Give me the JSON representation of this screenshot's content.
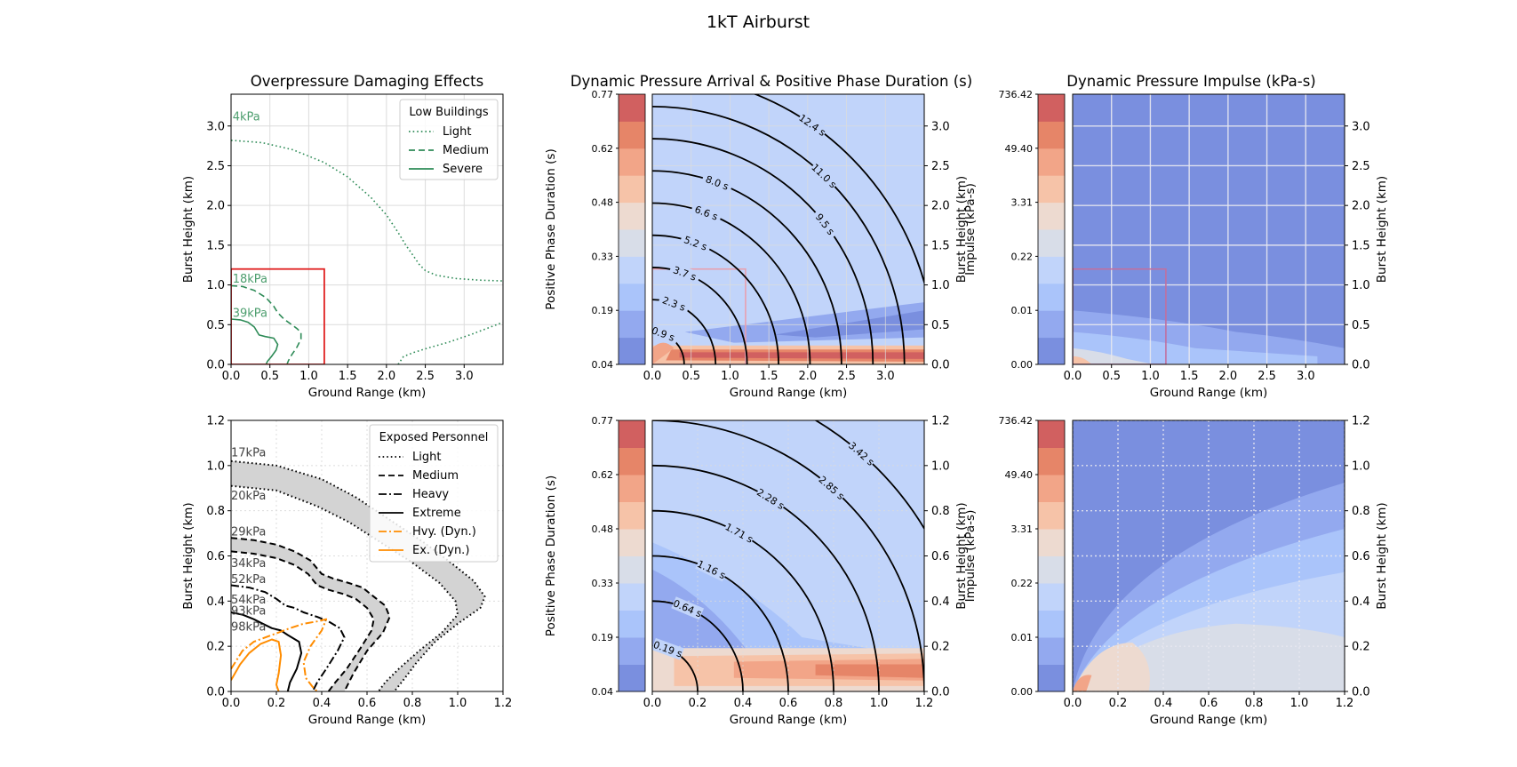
{
  "figure": {
    "suptitle": "1kT Airburst"
  },
  "chart_data": [
    {
      "id": "overpressure-top",
      "type": "line",
      "title": "Overpressure Damaging Effects",
      "xlabel": "Ground Range (km)",
      "ylabel": "Burst Height (km)",
      "xlim": [
        0,
        3.5
      ],
      "ylim": [
        0,
        3.4
      ],
      "xticks": [
        "0.0",
        "0.5",
        "1.0",
        "1.5",
        "2.0",
        "2.5",
        "3.0"
      ],
      "yticks": [
        "0.0",
        "0.5",
        "1.0",
        "1.5",
        "2.0",
        "2.5",
        "3.0"
      ],
      "grid": true,
      "legend": {
        "title": "Low Buildings",
        "position": "top-right",
        "entries": [
          "Light",
          "Medium",
          "Severe"
        ]
      },
      "annotations": [
        "4kPa",
        "18kPa",
        "39kPa"
      ],
      "highlight_box": {
        "x": [
          0,
          1.2
        ],
        "y": [
          0,
          1.2
        ],
        "color": "#e02020"
      },
      "series": [
        {
          "name": "Light",
          "style": "dotted",
          "color": "#2e8b57",
          "x": [
            0,
            0.4,
            0.8,
            1.2,
            1.5,
            1.8,
            2.0,
            2.15,
            2.25,
            2.35,
            2.42,
            2.5,
            2.65,
            2.9,
            3.2,
            3.5
          ],
          "y": [
            2.82,
            2.79,
            2.7,
            2.54,
            2.36,
            2.1,
            1.88,
            1.66,
            1.5,
            1.36,
            1.26,
            1.18,
            1.12,
            1.08,
            1.06,
            1.05
          ]
        },
        {
          "name": "Light",
          "style": "dotted",
          "color": "#2e8b57",
          "x": [
            2.15,
            2.22,
            2.35,
            2.55,
            2.8,
            3.1,
            3.5
          ],
          "y": [
            0.0,
            0.1,
            0.15,
            0.21,
            0.28,
            0.38,
            0.53
          ]
        },
        {
          "name": "Medium",
          "style": "dashed",
          "color": "#2e8b57",
          "x": [
            0,
            0.15,
            0.3,
            0.45,
            0.55,
            0.6,
            0.68,
            0.78,
            0.85,
            0.9,
            0.9,
            0.85,
            0.78,
            0.74,
            0.72
          ],
          "y": [
            0.99,
            0.98,
            0.93,
            0.84,
            0.73,
            0.65,
            0.57,
            0.5,
            0.45,
            0.4,
            0.32,
            0.22,
            0.12,
            0.05,
            0.0
          ]
        },
        {
          "name": "Severe",
          "style": "solid",
          "color": "#2e8b57",
          "x": [
            0,
            0.12,
            0.22,
            0.3,
            0.36,
            0.44,
            0.55,
            0.6,
            0.58,
            0.52,
            0.47,
            0.45
          ],
          "y": [
            0.57,
            0.56,
            0.53,
            0.47,
            0.37,
            0.35,
            0.33,
            0.25,
            0.18,
            0.1,
            0.04,
            0.0
          ]
        }
      ]
    },
    {
      "id": "dynamic-arrival-top",
      "type": "heatmap",
      "title": "Dynamic Pressure Arrival & Positive Phase Duration (s)",
      "xlabel": "Ground Range (km)",
      "ylabel_left": "Positive Phase Duration (s)",
      "ylabel_right": "Burst Height (km)",
      "xlim": [
        0,
        3.5
      ],
      "ylim": [
        0,
        3.4
      ],
      "xticks": [
        "0.0",
        "0.5",
        "1.0",
        "1.5",
        "2.0",
        "2.5",
        "3.0"
      ],
      "yticks_right": [
        "0.0",
        "0.5",
        "1.0",
        "1.5",
        "2.0",
        "2.5",
        "3.0"
      ],
      "colorbar_ticks": [
        "0.04",
        "0.19",
        "0.33",
        "0.48",
        "0.62",
        "0.77"
      ],
      "contour_labels": [
        "0.9 s",
        "2.3 s",
        "3.7 s",
        "5.2 s",
        "6.6 s",
        "8.0 s",
        "9.5 s",
        "11.0 s",
        "12.4 s"
      ],
      "highlight_box": {
        "x": [
          0,
          1.2
        ],
        "y": [
          0,
          1.2
        ],
        "color": "#e8a0b0"
      },
      "grid": true
    },
    {
      "id": "dynamic-impulse-top",
      "type": "heatmap",
      "title": "Dynamic Pressure Impulse (kPa-s)",
      "xlabel": "Ground Range (km)",
      "ylabel_left": "Impulse (kPa-s)",
      "ylabel_right": "Burst Height (km)",
      "xlim": [
        0,
        3.5
      ],
      "ylim": [
        0,
        3.4
      ],
      "xticks": [
        "0.0",
        "0.5",
        "1.0",
        "1.5",
        "2.0",
        "2.5",
        "3.0"
      ],
      "yticks_right": [
        "0.0",
        "0.5",
        "1.0",
        "1.5",
        "2.0",
        "2.5",
        "3.0"
      ],
      "colorbar_ticks": [
        "0.00",
        "0.01",
        "0.22",
        "3.31",
        "49.40",
        "736.42"
      ],
      "highlight_box": {
        "x": [
          0,
          1.2
        ],
        "y": [
          0,
          1.2
        ],
        "color": "#c070a0"
      },
      "grid": true
    },
    {
      "id": "personnel-bottom",
      "type": "line",
      "xlabel": "Ground Range (km)",
      "ylabel": "Burst Height (km)",
      "xlim": [
        0,
        1.2
      ],
      "ylim": [
        0,
        1.2
      ],
      "xticks": [
        "0.0",
        "0.2",
        "0.4",
        "0.6",
        "0.8",
        "1.0",
        "1.2"
      ],
      "yticks": [
        "0.0",
        "0.2",
        "0.4",
        "0.6",
        "0.8",
        "1.0",
        "1.2"
      ],
      "grid": true,
      "legend": {
        "title": "Exposed Personnel",
        "position": "top-right",
        "entries": [
          "Light",
          "Medium",
          "Heavy",
          "Extreme",
          "Hvy. (Dyn.)",
          "Ex. (Dyn.)"
        ]
      },
      "annotations": [
        "17kPa",
        "20kPa",
        "29kPa",
        "34kPa",
        "52kPa",
        "54kPa",
        "93kPa",
        "98kPa"
      ],
      "series": [
        {
          "name": "Light",
          "style": "dotted",
          "color": "#000000",
          "x": [
            0,
            0.2,
            0.4,
            0.55,
            0.7,
            0.85,
            0.97,
            1.07,
            1.12,
            1.1,
            1.0,
            0.9,
            0.82,
            0.76,
            0.72
          ],
          "y": [
            1.02,
            1.0,
            0.94,
            0.86,
            0.76,
            0.66,
            0.57,
            0.49,
            0.42,
            0.37,
            0.3,
            0.22,
            0.13,
            0.05,
            0.0
          ]
        },
        {
          "name": "Light",
          "style": "dotted",
          "color": "#000000",
          "x": [
            0,
            0.2,
            0.38,
            0.52,
            0.66,
            0.8,
            0.92,
            0.99,
            1.0,
            0.93,
            0.83,
            0.74,
            0.68,
            0.65
          ],
          "y": [
            0.91,
            0.89,
            0.82,
            0.75,
            0.66,
            0.57,
            0.48,
            0.4,
            0.34,
            0.26,
            0.18,
            0.1,
            0.04,
            0.0
          ]
        },
        {
          "name": "Medium",
          "style": "dashed",
          "color": "#000000",
          "x": [
            0,
            0.1,
            0.2,
            0.28,
            0.35,
            0.4,
            0.45,
            0.52,
            0.58,
            0.63,
            0.68,
            0.7,
            0.67,
            0.6,
            0.54,
            0.5
          ],
          "y": [
            0.68,
            0.67,
            0.65,
            0.62,
            0.58,
            0.52,
            0.5,
            0.48,
            0.46,
            0.42,
            0.38,
            0.33,
            0.26,
            0.18,
            0.08,
            0.0
          ]
        },
        {
          "name": "Medium",
          "style": "dashed",
          "color": "#000000",
          "x": [
            0,
            0.1,
            0.2,
            0.28,
            0.34,
            0.38,
            0.43,
            0.5,
            0.55,
            0.6,
            0.63,
            0.62,
            0.57,
            0.51,
            0.46,
            0.43
          ],
          "y": [
            0.62,
            0.61,
            0.59,
            0.56,
            0.52,
            0.47,
            0.45,
            0.43,
            0.41,
            0.37,
            0.32,
            0.27,
            0.19,
            0.1,
            0.04,
            0.0
          ]
        },
        {
          "name": "Heavy",
          "style": "dashdot",
          "color": "#000000",
          "x": [
            0,
            0.08,
            0.15,
            0.2,
            0.24,
            0.28,
            0.32,
            0.38,
            0.43,
            0.48,
            0.5,
            0.47,
            0.42,
            0.38,
            0.36
          ],
          "y": [
            0.47,
            0.46,
            0.44,
            0.41,
            0.38,
            0.37,
            0.35,
            0.33,
            0.31,
            0.28,
            0.24,
            0.18,
            0.1,
            0.04,
            0.0
          ]
        },
        {
          "name": "Extreme",
          "style": "solid",
          "color": "#000000",
          "x": [
            0,
            0.05,
            0.1,
            0.14,
            0.18,
            0.22,
            0.25,
            0.3,
            0.31,
            0.29,
            0.26,
            0.25
          ],
          "y": [
            0.35,
            0.34,
            0.32,
            0.3,
            0.28,
            0.27,
            0.25,
            0.22,
            0.17,
            0.1,
            0.04,
            0.0
          ]
        },
        {
          "name": "Hvy. (Dyn.)",
          "style": "dashdot",
          "color": "#ff8c00",
          "x": [
            0,
            0.05,
            0.1,
            0.18,
            0.26,
            0.32,
            0.38,
            0.42,
            0.4,
            0.35,
            0.32,
            0.33,
            0.36,
            0.38
          ],
          "y": [
            0.1,
            0.18,
            0.22,
            0.25,
            0.28,
            0.3,
            0.31,
            0.32,
            0.27,
            0.2,
            0.13,
            0.06,
            0.02,
            0.0
          ]
        },
        {
          "name": "Ex. (Dyn.)",
          "style": "solid",
          "color": "#ff8c00",
          "x": [
            0,
            0.04,
            0.08,
            0.13,
            0.18,
            0.21,
            0.22,
            0.21,
            0.2,
            0.21
          ],
          "y": [
            0.05,
            0.12,
            0.17,
            0.21,
            0.23,
            0.22,
            0.16,
            0.08,
            0.03,
            0.0
          ]
        }
      ]
    },
    {
      "id": "dynamic-arrival-bottom",
      "type": "heatmap",
      "xlabel": "Ground Range (km)",
      "ylabel_left": "Positive Phase Duration (s)",
      "ylabel_right": "Burst Height (km)",
      "xlim": [
        0,
        1.2
      ],
      "ylim": [
        0,
        1.2
      ],
      "xticks": [
        "0.0",
        "0.2",
        "0.4",
        "0.6",
        "0.8",
        "1.0",
        "1.2"
      ],
      "yticks_right": [
        "0.0",
        "0.2",
        "0.4",
        "0.6",
        "0.8",
        "1.0",
        "1.2"
      ],
      "colorbar_ticks": [
        "0.04",
        "0.19",
        "0.33",
        "0.48",
        "0.62",
        "0.77"
      ],
      "contour_labels": [
        "0.19 s",
        "0.64 s",
        "1.16 s",
        "1.71 s",
        "2.28 s",
        "2.85 s",
        "3.42 s"
      ],
      "grid": true
    },
    {
      "id": "dynamic-impulse-bottom",
      "type": "heatmap",
      "xlabel": "Ground Range (km)",
      "ylabel_left": "Impulse (kPa-s)",
      "ylabel_right": "Burst Height (km)",
      "xlim": [
        0,
        1.2
      ],
      "ylim": [
        0,
        1.2
      ],
      "xticks": [
        "0.0",
        "0.2",
        "0.4",
        "0.6",
        "0.8",
        "1.0",
        "1.2"
      ],
      "yticks_right": [
        "0.0",
        "0.2",
        "0.4",
        "0.6",
        "0.8",
        "1.0",
        "1.2"
      ],
      "colorbar_ticks": [
        "0.00",
        "0.01",
        "0.22",
        "3.31",
        "49.40",
        "736.42"
      ],
      "grid": true
    }
  ],
  "colors": {
    "colormap": [
      "#7a8fdf",
      "#93a9ef",
      "#aac4fa",
      "#c1d4fa",
      "#d8dde8",
      "#eddad0",
      "#f6c3a8",
      "#f2a588",
      "#e68568",
      "#d16060"
    ],
    "grid": "#dcdcdc",
    "overpressure": "#2e8b57",
    "dynamic": "#ff8c00"
  }
}
